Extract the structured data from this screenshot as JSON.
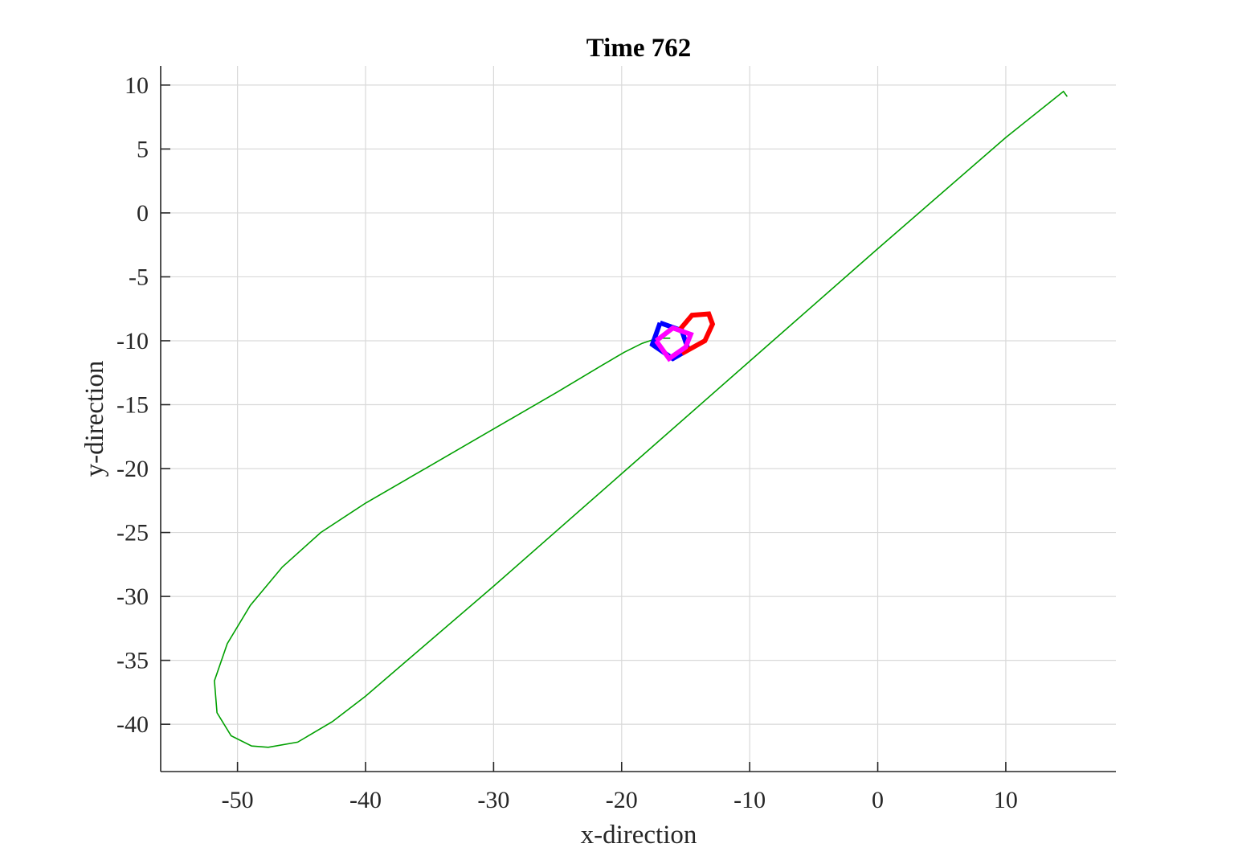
{
  "chart_data": {
    "type": "line",
    "title": "Time 762",
    "xlabel": "x-direction",
    "ylabel": "y-direction",
    "xlim": [
      -56,
      18.6
    ],
    "ylim": [
      -43.7,
      11.5
    ],
    "xticks": [
      -50,
      -40,
      -30,
      -20,
      -10,
      0,
      10
    ],
    "yticks": [
      10,
      5,
      0,
      -5,
      -10,
      -15,
      -20,
      -25,
      -30,
      -35,
      -40
    ],
    "grid": true,
    "series": [
      {
        "color": "#00a000",
        "points": [
          [
            -16.2,
            -9.8
          ],
          [
            -17.2,
            -9.8
          ],
          [
            -18.4,
            -10.2
          ],
          [
            -19.8,
            -10.9
          ],
          [
            -21.5,
            -11.9
          ],
          [
            -25.0,
            -14.0
          ],
          [
            -30.0,
            -16.9
          ],
          [
            -35.0,
            -19.8
          ],
          [
            -40.0,
            -22.7
          ],
          [
            -43.5,
            -25.0
          ],
          [
            -46.5,
            -27.7
          ],
          [
            -49.0,
            -30.7
          ],
          [
            -50.8,
            -33.7
          ],
          [
            -51.8,
            -36.6
          ],
          [
            -51.6,
            -39.1
          ],
          [
            -50.5,
            -40.9
          ],
          [
            -48.9,
            -41.7
          ],
          [
            -47.6,
            -41.8
          ],
          [
            -45.3,
            -41.4
          ],
          [
            -42.6,
            -39.8
          ],
          [
            -40.0,
            -37.8
          ],
          [
            -30.0,
            -29.2
          ],
          [
            -20.0,
            -20.4
          ],
          [
            -10.0,
            -11.6
          ],
          [
            0.0,
            -2.8
          ],
          [
            10.0,
            5.9
          ],
          [
            14.5,
            9.5
          ],
          [
            14.8,
            9.1
          ]
        ]
      },
      {
        "color": "#0000ff",
        "points": [
          [
            -17.0,
            -8.6
          ],
          [
            -15.3,
            -9.2
          ],
          [
            -14.8,
            -10.7
          ],
          [
            -16.0,
            -11.4
          ],
          [
            -17.6,
            -10.3
          ],
          [
            -17.0,
            -8.6
          ]
        ]
      },
      {
        "color": "#ff0000",
        "points": [
          [
            -15.6,
            -9.3
          ],
          [
            -14.5,
            -8.0
          ],
          [
            -13.2,
            -7.9
          ],
          [
            -12.9,
            -8.7
          ],
          [
            -13.5,
            -10.0
          ],
          [
            -15.3,
            -11.0
          ]
        ]
      },
      {
        "color": "#ff00ff",
        "points": [
          [
            -17.3,
            -10.0
          ],
          [
            -16.0,
            -9.0
          ],
          [
            -14.6,
            -9.5
          ],
          [
            -15.0,
            -10.5
          ],
          [
            -16.3,
            -11.4
          ],
          [
            -17.3,
            -10.0
          ]
        ]
      }
    ]
  }
}
